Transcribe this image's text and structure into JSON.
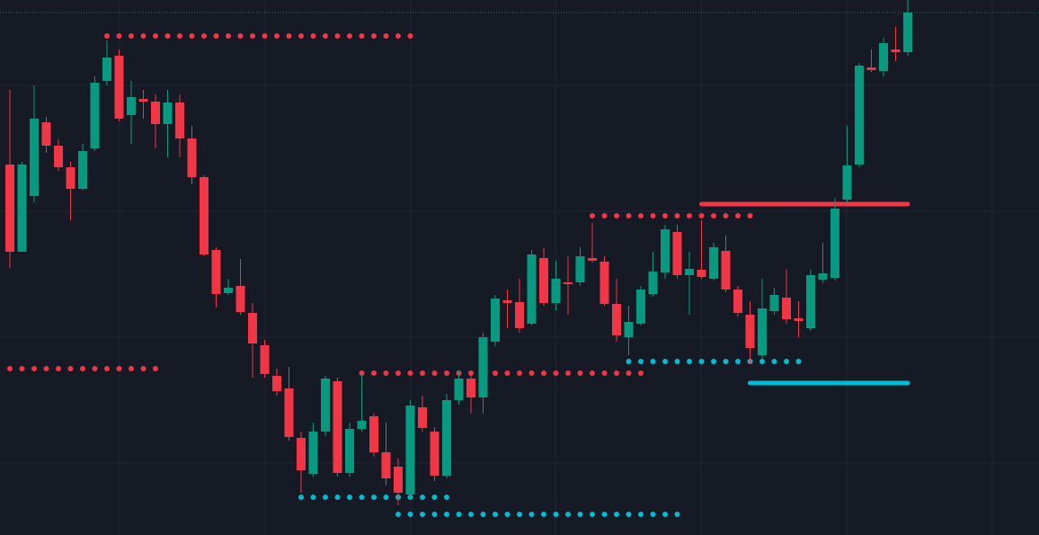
{
  "chart_data": {
    "type": "candlestick",
    "ylim": [
      0,
      595
    ],
    "colors": {
      "up": "#089981",
      "down": "#f23645"
    },
    "open": [
      412,
      315,
      377,
      459,
      433,
      409,
      385,
      430,
      505,
      533,
      467,
      485,
      482,
      457,
      481,
      441,
      398,
      317,
      269,
      277,
      247,
      211,
      177,
      163,
      108,
      68,
      115,
      171,
      69,
      118,
      132,
      92,
      76,
      45,
      142,
      115,
      66,
      150,
      174,
      153,
      215,
      261,
      259,
      235,
      308,
      258,
      281,
      281,
      308,
      304,
      257,
      220,
      235,
      268,
      292,
      337,
      289,
      295,
      285,
      316,
      273,
      245,
      200,
      249,
      264,
      241,
      230,
      284,
      286,
      373,
      412,
      520,
      516,
      540,
      537
    ],
    "high": [
      495,
      415,
      500,
      465,
      440,
      415,
      435,
      510,
      550,
      540,
      505,
      495,
      490,
      495,
      490,
      455,
      400,
      320,
      285,
      307,
      258,
      217,
      185,
      187,
      115,
      125,
      177,
      175,
      125,
      180,
      135,
      125,
      85,
      150,
      155,
      120,
      157,
      183,
      180,
      225,
      267,
      273,
      285,
      317,
      320,
      305,
      310,
      320,
      347,
      310,
      285,
      255,
      277,
      315,
      345,
      345,
      315,
      350,
      325,
      333,
      277,
      260,
      285,
      275,
      295,
      260,
      295,
      325,
      375,
      455,
      525,
      540,
      553,
      565,
      595
    ],
    "low": [
      297,
      315,
      370,
      425,
      405,
      350,
      383,
      427,
      500,
      460,
      435,
      463,
      430,
      420,
      420,
      390,
      310,
      253,
      267,
      245,
      175,
      175,
      155,
      105,
      47,
      65,
      110,
      65,
      65,
      115,
      87,
      55,
      33,
      39,
      115,
      60,
      63,
      145,
      135,
      135,
      210,
      230,
      225,
      233,
      255,
      250,
      245,
      277,
      303,
      255,
      215,
      200,
      233,
      265,
      285,
      285,
      245,
      285,
      283,
      270,
      243,
      190,
      195,
      245,
      235,
      220,
      227,
      280,
      283,
      370,
      409,
      515,
      510,
      527,
      533
    ],
    "close": [
      315,
      412,
      463,
      433,
      409,
      385,
      427,
      503,
      531,
      463,
      487,
      482,
      457,
      481,
      441,
      398,
      312,
      268,
      275,
      248,
      213,
      179,
      160,
      109,
      72,
      115,
      174,
      69,
      118,
      127,
      92,
      63,
      47,
      144,
      119,
      66,
      150,
      174,
      153,
      220,
      263,
      258,
      230,
      312,
      258,
      285,
      279,
      310,
      305,
      257,
      222,
      237,
      273,
      293,
      340,
      289,
      296,
      287,
      320,
      273,
      247,
      208,
      252,
      267,
      240,
      238,
      289,
      291,
      363,
      411,
      522,
      517,
      547,
      537,
      581
    ],
    "levels": [
      {
        "value": 555,
        "from": 8,
        "to": 33,
        "color": "#f23645",
        "style": "dots"
      },
      {
        "value": 185,
        "from": 0,
        "to": 12,
        "color": "#f23645",
        "style": "dots"
      },
      {
        "value": 180,
        "from": 29,
        "to": 52,
        "color": "#f23645",
        "style": "dots"
      },
      {
        "value": 355,
        "from": 48,
        "to": 61,
        "color": "#f23645",
        "style": "dots"
      },
      {
        "value": 368,
        "from": 57,
        "to": 74,
        "color": "#f23645",
        "style": "line"
      },
      {
        "value": 42,
        "from": 24,
        "to": 36,
        "color": "#00bcd4",
        "style": "dots"
      },
      {
        "value": 23,
        "from": 32,
        "to": 55,
        "color": "#00bcd4",
        "style": "dots"
      },
      {
        "value": 193,
        "from": 51,
        "to": 65,
        "color": "#00bcd4",
        "style": "dots"
      },
      {
        "value": 169,
        "from": 61,
        "to": 74,
        "color": "#00bcd4",
        "style": "line"
      }
    ]
  }
}
